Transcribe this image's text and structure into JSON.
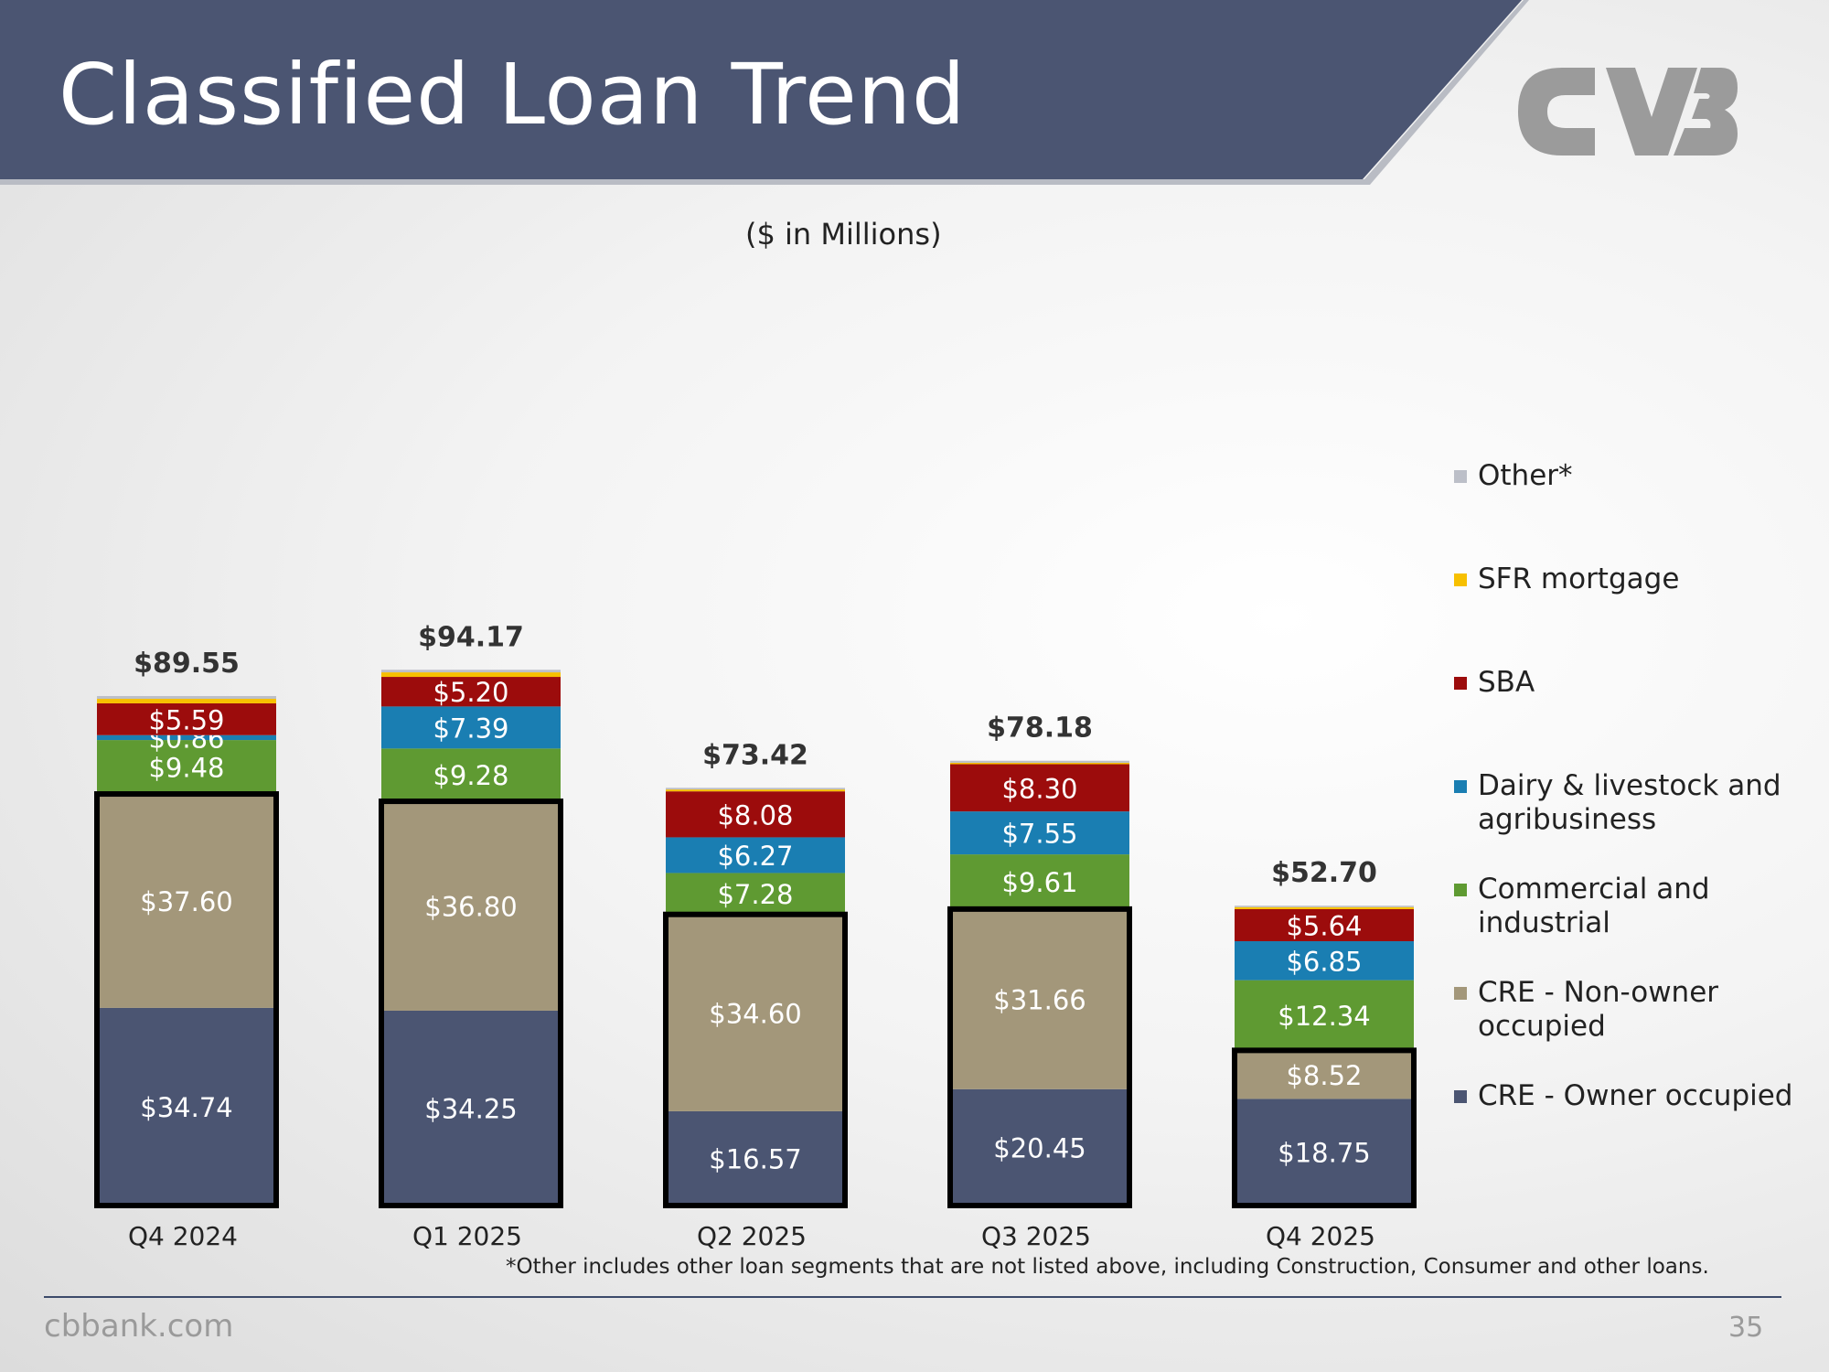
{
  "slide": {
    "title": "Classified Loan Trend",
    "units_note": "($ in Millions)",
    "footnote": "*Other includes other loan segments that are not listed above, including Construction, Consumer and other loans.",
    "footer_site": "cbbank.com",
    "page_number": "35",
    "colors": {
      "header": "#4b5572",
      "logo": "#9b9b9b",
      "footer_rule": "#3c4a6a"
    }
  },
  "chart_data": {
    "type": "bar",
    "stacked": true,
    "title": "Classified Loan Trend",
    "units": "($ in Millions)",
    "categories": [
      "Q4 2024",
      "Q1 2025",
      "Q2 2025",
      "Q3 2025",
      "Q4 2025"
    ],
    "totals": [
      89.55,
      94.17,
      73.42,
      78.18,
      52.7
    ],
    "total_labels": [
      "$89.55",
      "$94.17",
      "$73.42",
      "$78.18",
      "$52.70"
    ],
    "series": [
      {
        "name": "CRE - Owner occupied",
        "color": "#4b5572",
        "values": [
          34.74,
          34.25,
          16.57,
          20.45,
          18.75
        ],
        "labels": [
          "$34.74",
          "$34.25",
          "$16.57",
          "$20.45",
          "$18.75"
        ]
      },
      {
        "name": "CRE - Non-owner occupied",
        "color": "#a3977a",
        "values": [
          37.6,
          36.8,
          34.6,
          31.66,
          8.52
        ],
        "labels": [
          "$37.60",
          "$36.80",
          "$34.60",
          "$31.66",
          "$8.52"
        ]
      },
      {
        "name": "Commercial and industrial",
        "color": "#5f9a32",
        "values": [
          9.48,
          9.28,
          7.28,
          9.61,
          12.34
        ],
        "labels": [
          "$9.48",
          "$9.28",
          "$7.28",
          "$9.61",
          "$12.34"
        ]
      },
      {
        "name": "Dairy & livestock and agribusiness",
        "color": "#1a7eb2",
        "values": [
          0.86,
          7.39,
          6.27,
          7.55,
          6.85
        ],
        "labels": [
          "$0.86",
          "$7.39",
          "$6.27",
          "$7.55",
          "$6.85"
        ]
      },
      {
        "name": "SBA",
        "color": "#9c0c0c",
        "values": [
          5.59,
          5.2,
          8.08,
          8.3,
          5.64
        ],
        "labels": [
          "$5.59",
          "$5.20",
          "$8.08",
          "$8.30",
          "$5.64"
        ]
      },
      {
        "name": "SFR mortgage",
        "color": "#f7c000",
        "values": [
          0.8,
          0.8,
          0.33,
          0.25,
          0.35
        ],
        "labels": [
          "",
          "",
          "",
          "",
          ""
        ]
      },
      {
        "name": "Other*",
        "color": "#bcbfc8",
        "values": [
          0.48,
          0.45,
          0.29,
          0.36,
          0.25
        ],
        "labels": [
          "",
          "",
          "",
          "",
          ""
        ]
      }
    ],
    "outlined_series": [
      "CRE - Owner occupied",
      "CRE - Non-owner occupied"
    ],
    "ylim": [
      0,
      100
    ],
    "grid": false,
    "legend": "right"
  },
  "legend": {
    "items": [
      {
        "label": "Other*",
        "color": "#bcbfc8"
      },
      {
        "label": "SFR mortgage",
        "color": "#f7c000"
      },
      {
        "label": "SBA",
        "color": "#9c0c0c"
      },
      {
        "label": "Dairy & livestock and agribusiness",
        "color": "#1a7eb2"
      },
      {
        "label": "Commercial and industrial",
        "color": "#5f9a32"
      },
      {
        "label": "CRE - Non-owner occupied",
        "color": "#a3977a"
      },
      {
        "label": "CRE - Owner occupied",
        "color": "#4b5572"
      }
    ]
  }
}
